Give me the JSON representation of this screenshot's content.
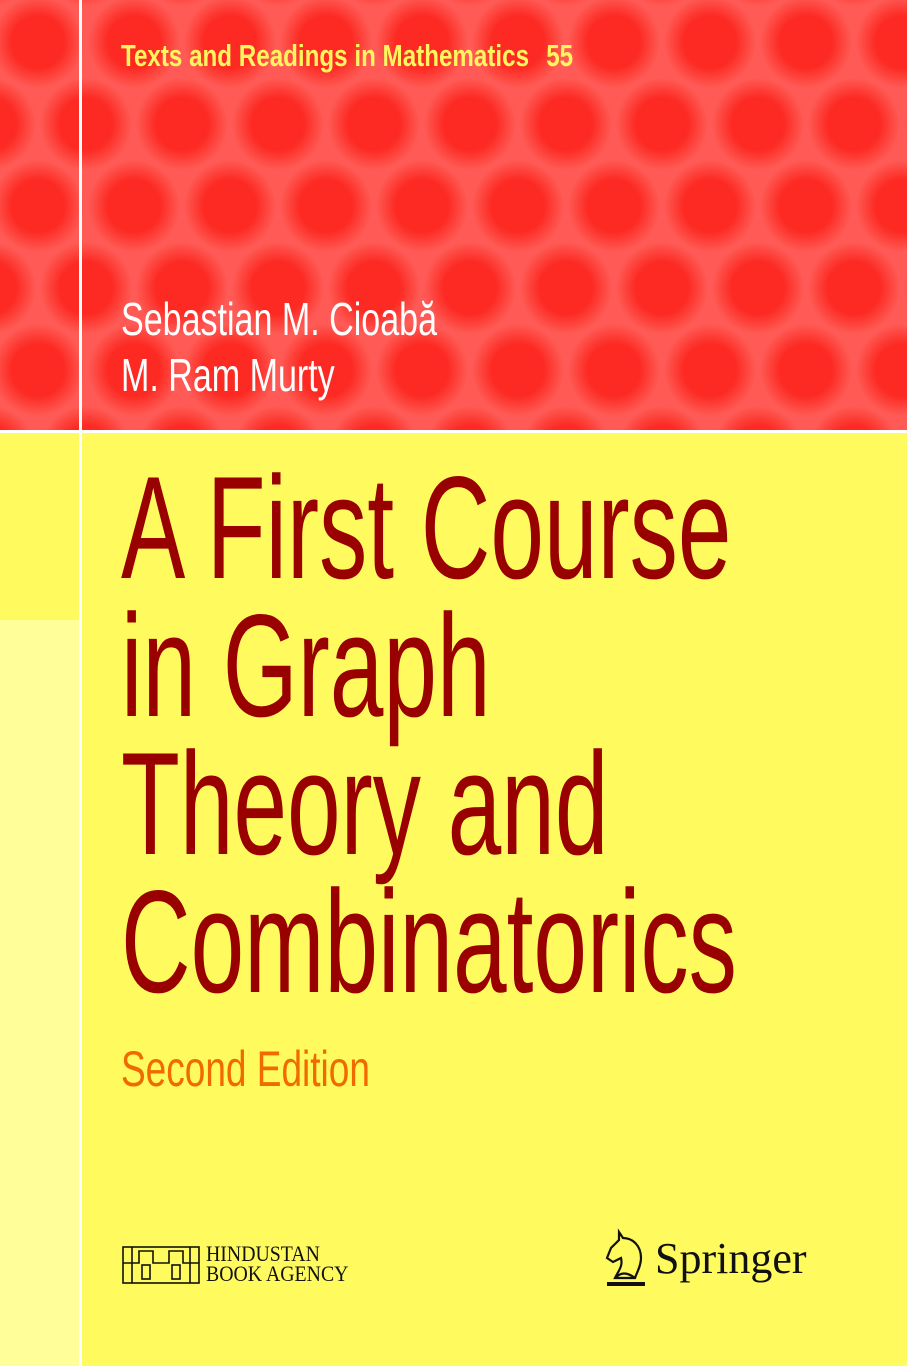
{
  "series": {
    "name": "Texts and Readings in Mathematics",
    "number": "55"
  },
  "authors": [
    "Sebastian M. Cioabă",
    "M. Ram Murty"
  ],
  "title_lines": [
    "A First Course",
    "in Graph",
    "Theory and",
    "Combinatorics"
  ],
  "edition": "Second Edition",
  "publishers": {
    "hba_line1": "HINDUSTAN",
    "hba_line2": "BOOK AGENCY",
    "springer": "Springer"
  },
  "colors": {
    "red": "#fc2a22",
    "yellow": "#fffa5e",
    "title": "#990000",
    "edition": "#f06a00"
  }
}
